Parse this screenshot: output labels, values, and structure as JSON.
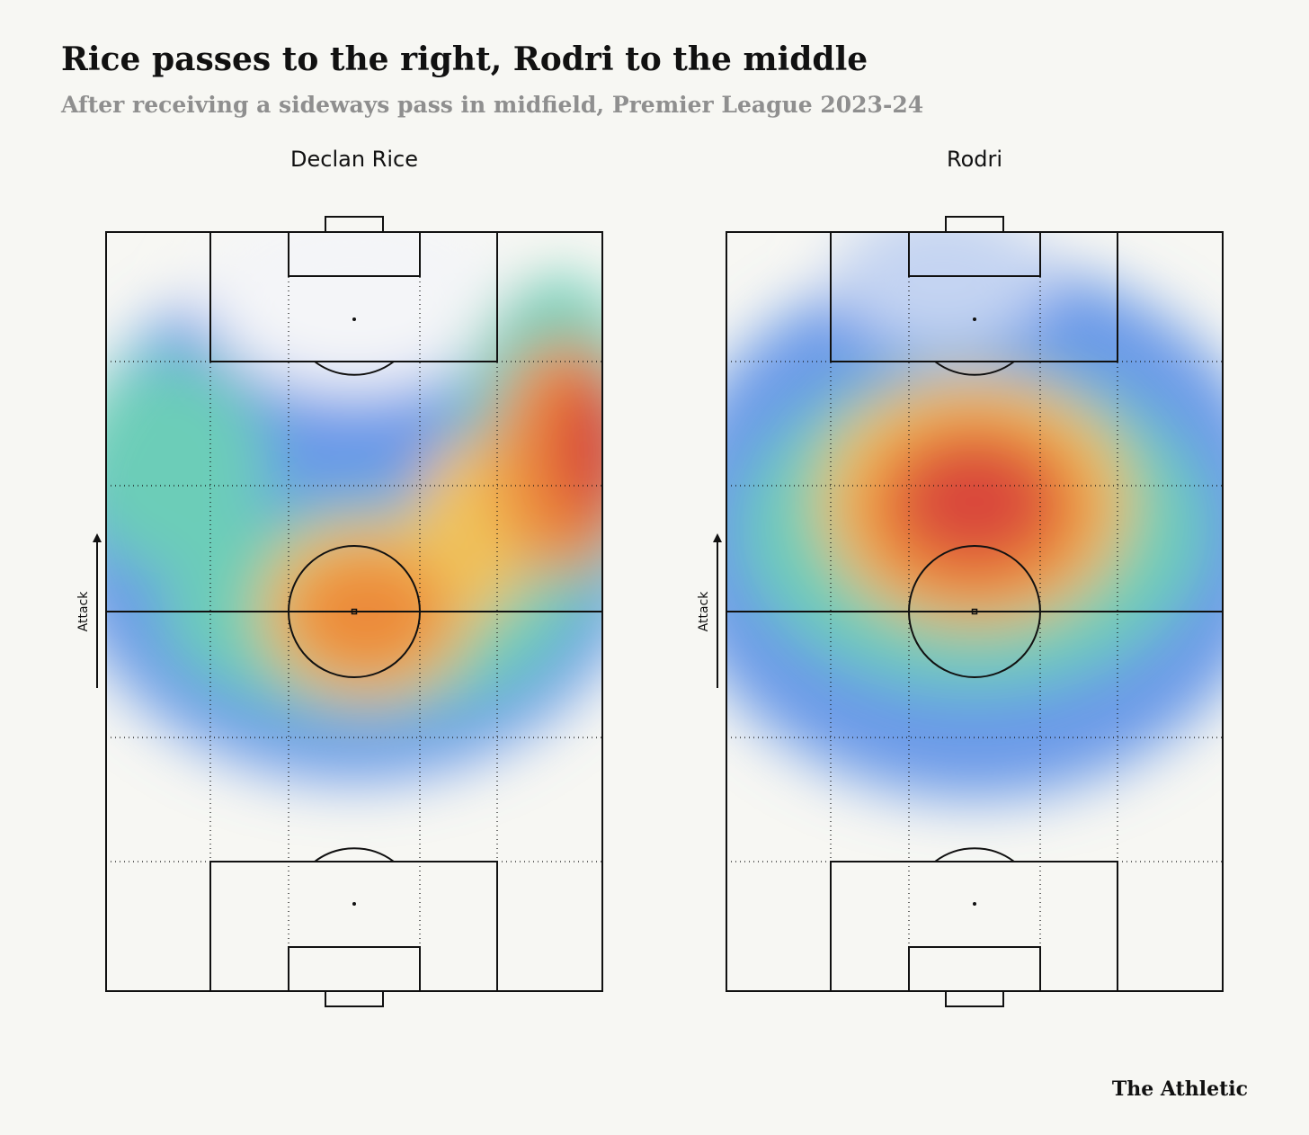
{
  "header": {
    "title": "Rice passes to the right, Rodri to the middle",
    "subtitle": "After receiving a sideways pass in midfield, Premier League 2023-24"
  },
  "panels": [
    {
      "name": "Declan Rice",
      "direction_label": "Attack"
    },
    {
      "name": "Rodri",
      "direction_label": "Attack"
    }
  ],
  "footer": {
    "brand": "The Athletic"
  }
}
